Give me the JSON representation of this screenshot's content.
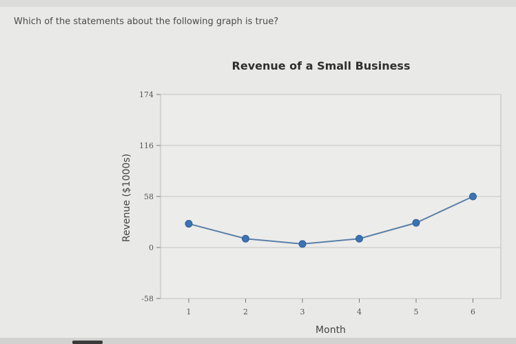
{
  "question": "Which of the statements about the following graph is true?",
  "chart_data": {
    "type": "line",
    "title": "Revenue of a Small Business",
    "xlabel": "Month",
    "ylabel": "Revenue ($1000s)",
    "x": [
      1,
      2,
      3,
      4,
      5,
      6
    ],
    "xticks": [
      "1",
      "2",
      "3",
      "4",
      "5",
      "6"
    ],
    "yticks": [
      "174",
      "116",
      "58",
      "0",
      "-58"
    ],
    "ytick_values": [
      174,
      116,
      58,
      0,
      -58
    ],
    "ylim": [
      -58,
      174
    ],
    "series": [
      {
        "values": [
          27,
          10,
          4,
          10,
          28,
          58
        ]
      }
    ],
    "grid": "horizontal",
    "colors": {
      "line": "#5a7fa6",
      "point": "#3b73b4"
    }
  }
}
